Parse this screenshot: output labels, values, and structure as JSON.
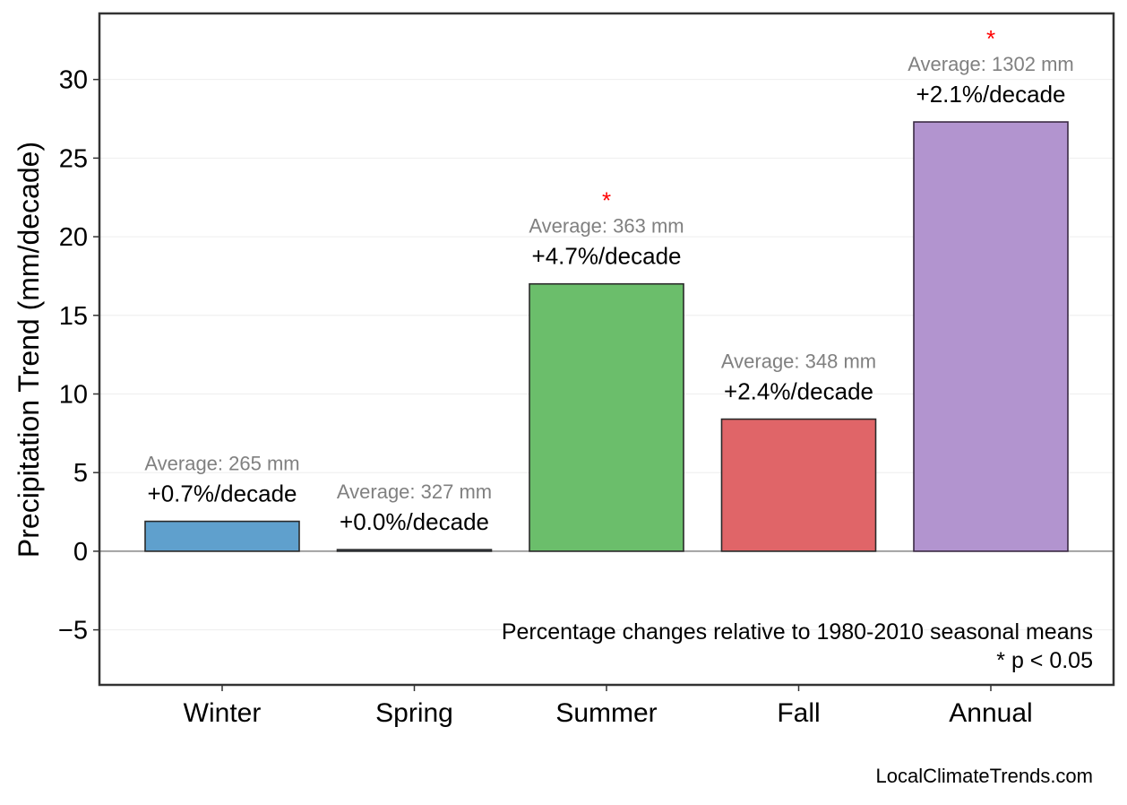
{
  "chart_data": {
    "type": "bar",
    "categories": [
      "Winter",
      "Spring",
      "Summer",
      "Fall",
      "Annual"
    ],
    "values": [
      1.9,
      0.1,
      17.0,
      8.4,
      27.3
    ],
    "colors": [
      "#5fa0cd",
      "#5a7fb3",
      "#6bbe6b",
      "#e06568",
      "#b294cf"
    ],
    "bar_labels": [
      "+0.7%/decade",
      "+0.0%/decade",
      "+4.7%/decade",
      "+2.4%/decade",
      "+2.1%/decade"
    ],
    "average_labels": [
      "Average: 265 mm",
      "Average: 327 mm",
      "Average: 363 mm",
      "Average: 348 mm",
      "Average: 1302 mm"
    ],
    "significance_markers": [
      "",
      "",
      "*",
      "",
      "*"
    ],
    "ylabel": "Precipitation Trend (mm/decade)",
    "xlabel": "",
    "ylim": [
      -8.5,
      34.2
    ],
    "yticks": [
      -5,
      0,
      5,
      10,
      15,
      20,
      25,
      30
    ],
    "ytick_labels": [
      "−5",
      "0",
      "5",
      "10",
      "15",
      "20",
      "25",
      "30"
    ],
    "grid": true,
    "zero_line": true,
    "notes": [
      "Percentage changes relative to 1980-2010 seasonal means",
      "* p < 0.05"
    ],
    "credit": "LocalClimateTrends.com"
  }
}
